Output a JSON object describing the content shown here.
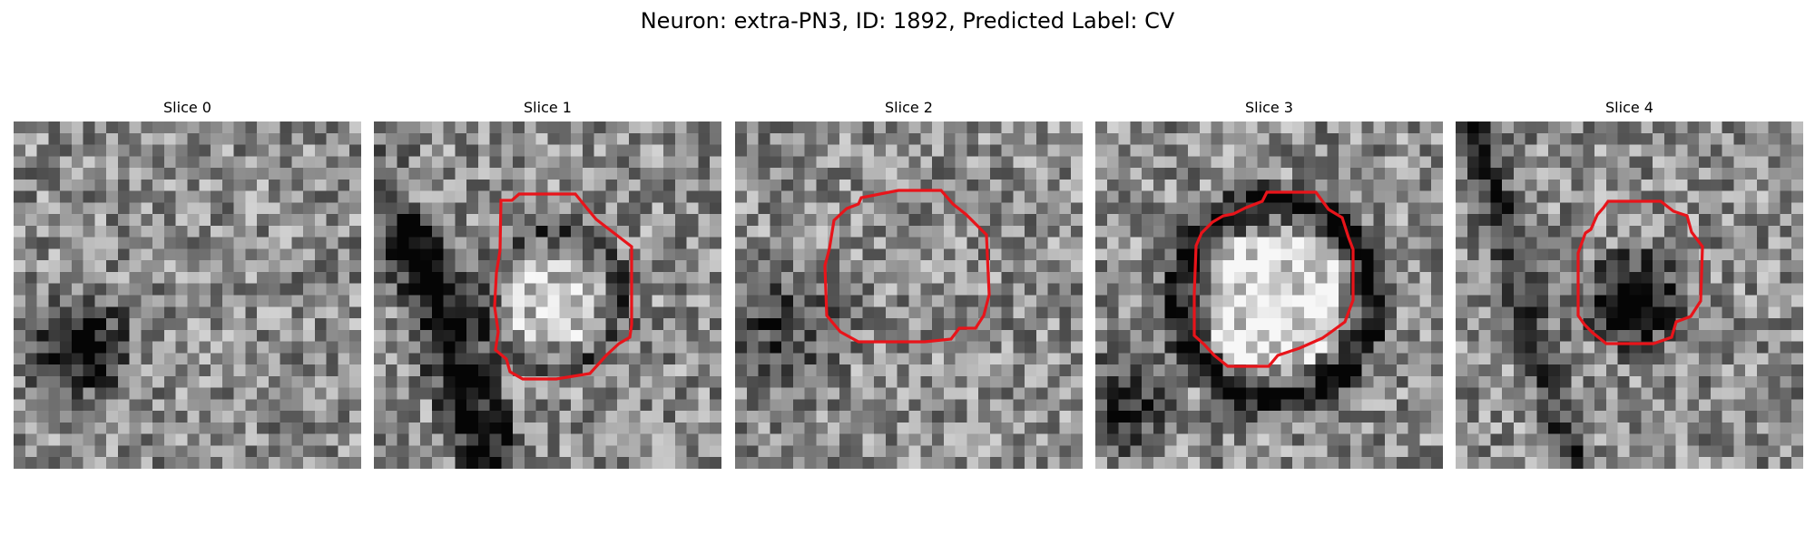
{
  "figure": {
    "title": "Neuron: extra-PN3, ID: 1892, Predicted Label: CV"
  },
  "panels": [
    {
      "title": "Slice 0",
      "has_outline": false,
      "dark_spot": "lower-left",
      "seed": 11
    },
    {
      "title": "Slice 1",
      "has_outline": true,
      "dark_spot": "left-band",
      "seed": 23
    },
    {
      "title": "Slice 2",
      "has_outline": true,
      "dark_spot": "scattered",
      "seed": 37
    },
    {
      "title": "Slice 3",
      "has_outline": true,
      "dark_spot": "ring",
      "seed": 41
    },
    {
      "title": "Slice 4",
      "has_outline": true,
      "dark_spot": "center",
      "seed": 53
    }
  ],
  "colors": {
    "outline": "#e8141a",
    "background": "#ffffff",
    "text": "#000000"
  }
}
